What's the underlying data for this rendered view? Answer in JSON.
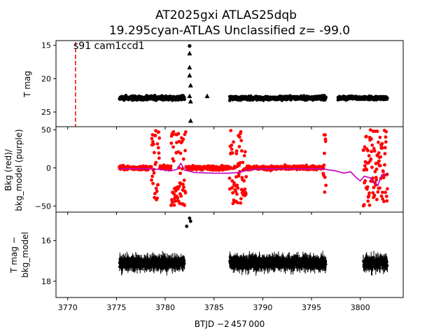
{
  "title": {
    "line1": "AT2025gxi  ATLAS25dqb",
    "line2": "19.295cyan-ATLAS Unclassified z= -99.0"
  },
  "xlabel": "BTJD −2 457 000",
  "x_ticks": [
    "3770",
    "3775",
    "3780",
    "3785",
    "3790",
    "3795",
    "3800"
  ],
  "colors": {
    "points": "#000000",
    "bkg": "#ff0000",
    "bkg_model": "#bf00bf",
    "marker": "#ff0000"
  },
  "chart_data": [
    {
      "type": "scatter",
      "panel": "T mag",
      "ylabel": "T mag",
      "y_inverted": true,
      "xlim": [
        3768.8,
        3804.4
      ],
      "ylim": [
        27.2,
        14.3
      ],
      "y_ticks": [
        "15",
        "20",
        "25"
      ],
      "annotation": "s91 cam1ccd1",
      "vertical_marker_x": 3770.8,
      "series": [
        {
          "marker": "circle",
          "x_ranges": [
            [
              3775.3,
              3782.0
            ],
            [
              3786.6,
              3796.5
            ],
            [
              3797.7,
              3802.8
            ]
          ],
          "y_center": 22.9,
          "y_spread": 0.6
        },
        {
          "marker": "triangle-up",
          "points": [
            [
              3782.5,
              16.2
            ],
            [
              3782.5,
              18.3
            ],
            [
              3782.5,
              19.5
            ],
            [
              3782.6,
              21.0
            ],
            [
              3782.5,
              22.6
            ],
            [
              3782.6,
              23.4
            ],
            [
              3782.6,
              26.3
            ],
            [
              3784.3,
              22.6
            ]
          ]
        },
        {
          "marker": "circle",
          "points": [
            [
              3782.5,
              15.1
            ]
          ]
        }
      ]
    },
    {
      "type": "scatter",
      "panel": "Bkg",
      "ylabel": "Bkg (red)/\nbkg_model (purple)",
      "xlim": [
        3768.8,
        3804.4
      ],
      "ylim": [
        -58,
        54
      ],
      "y_ticks": [
        "50",
        "0",
        "−50"
      ],
      "series": [
        {
          "marker": "circle",
          "color": "bkg",
          "dense_ranges": [
            [
              3775.3,
              3796.5
            ],
            [
              3800.3,
              3802.8
            ]
          ],
          "low_noise_level": 0,
          "high_noise_windows": [
            [
              3778.6,
              3779.4
            ],
            [
              3780.6,
              3782.1
            ],
            [
              3786.6,
              3788.3
            ],
            [
              3796.2,
              3796.6
            ],
            [
              3800.3,
              3802.8
            ]
          ]
        },
        {
          "type": "line",
          "color": "bkg_model",
          "points": [
            [
              3775.3,
              -1
            ],
            [
              3778,
              -1
            ],
            [
              3779.5,
              -2
            ],
            [
              3780.5,
              -4
            ],
            [
              3781.2,
              -2
            ],
            [
              3781.6,
              6
            ],
            [
              3782,
              -3
            ],
            [
              3783,
              -6
            ],
            [
              3785,
              -7
            ],
            [
              3786.6,
              -7
            ],
            [
              3787.5,
              -6
            ],
            [
              3788.5,
              -3
            ],
            [
              3790,
              -1
            ],
            [
              3793,
              -1
            ],
            [
              3796,
              -1
            ],
            [
              3797.5,
              -4
            ],
            [
              3798.3,
              -7
            ],
            [
              3799,
              -5
            ],
            [
              3799.6,
              -13
            ],
            [
              3800,
              -17
            ],
            [
              3800.4,
              -11
            ],
            [
              3801,
              -13
            ],
            [
              3801.4,
              -18
            ],
            [
              3801.8,
              -23
            ],
            [
              3802.2,
              -9
            ],
            [
              3802.8,
              -8
            ]
          ]
        }
      ]
    },
    {
      "type": "scatter",
      "panel": "T mag - bkg_model",
      "ylabel": "T mag −\nbkg_model",
      "y_inverted": true,
      "xlim": [
        3768.8,
        3804.4
      ],
      "ylim": [
        18.8,
        14.6
      ],
      "y_ticks": [
        "16",
        "18"
      ],
      "series": [
        {
          "marker": "circle",
          "error_bars": true,
          "x_ranges": [
            [
              3775.3,
              3782.0
            ],
            [
              3786.6,
              3796.5
            ],
            [
              3800.3,
              3802.8
            ]
          ],
          "y_center": 17.1,
          "y_spread": 0.4
        },
        {
          "marker": "circle",
          "points": [
            [
              3782.2,
              15.3
            ],
            [
              3782.5,
              14.9
            ],
            [
              3782.6,
              15.05
            ]
          ]
        }
      ]
    }
  ]
}
